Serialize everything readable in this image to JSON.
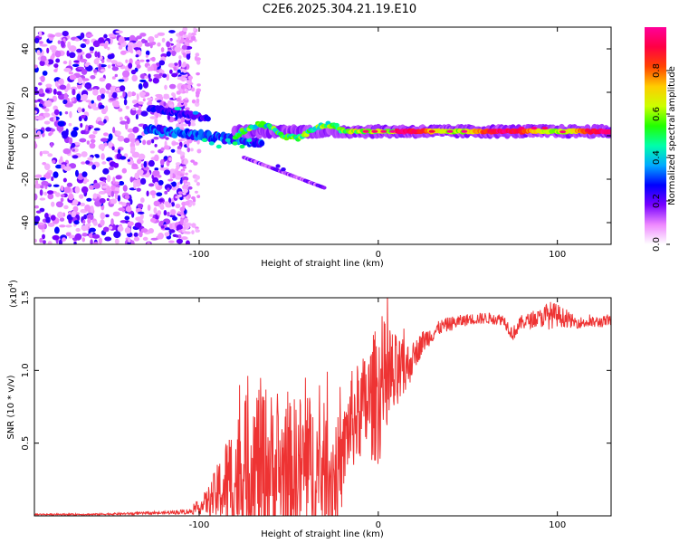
{
  "title": "C2E6.2025.304.21.19.E10",
  "chart_data": [
    {
      "type": "heatmap",
      "xlabel": "Height of straight line (km)",
      "ylabel": "Frequency (Hz)",
      "xlim": [
        -192,
        130
      ],
      "ylim": [
        -50,
        50
      ],
      "x_ticks": [
        -100,
        0,
        100
      ],
      "x_tick_labels": [
        "-100",
        "0",
        "100"
      ],
      "y_ticks": [
        -40,
        -20,
        0,
        20,
        40
      ],
      "y_tick_labels": [
        "-40",
        "-20",
        "0",
        "20",
        "40"
      ],
      "colorbar": {
        "label": "Normalized spectral amplitude",
        "range": [
          0,
          1
        ],
        "ticks": [
          0.0,
          0.2,
          0.4,
          0.6,
          0.8
        ],
        "tick_labels": [
          "0.0",
          "0.2",
          "0.4",
          "0.6",
          "0.8"
        ],
        "colors": [
          "#ffffff",
          "#ee88ff",
          "#7700ff",
          "#0000ff",
          "#00aaff",
          "#00ffaa",
          "#22ff00",
          "#ccff00",
          "#ffcc00",
          "#ff4400",
          "#ff0044",
          "#ff0099"
        ]
      },
      "features": [
        {
          "name": "noise region",
          "x_range": [
            -192,
            -105
          ],
          "y_range": [
            -50,
            48
          ],
          "amplitude": 0.2
        },
        {
          "name": "main signal band",
          "x_range": [
            -80,
            130
          ],
          "frequency": 2,
          "amplitude_range": [
            0.3,
            1.0
          ]
        },
        {
          "name": "upper fork",
          "x_range": [
            -128,
            -95
          ],
          "frequency_range": [
            13,
            8
          ]
        },
        {
          "name": "lower fork",
          "x_range": [
            -120,
            -65
          ],
          "frequency_range": [
            2,
            -5
          ]
        },
        {
          "name": "descending tail",
          "x_range": [
            -75,
            -30
          ],
          "frequency_range": [
            -10,
            -24
          ]
        }
      ]
    },
    {
      "type": "line",
      "xlabel": "Height of straight line (km)",
      "ylabel": "SNR (10 * v/v)",
      "y_scale_label": "(x10",
      "y_scale_exponent": "4",
      "xlim": [
        -192,
        130
      ],
      "ylim": [
        0,
        1.5
      ],
      "x_ticks": [
        -100,
        0,
        100
      ],
      "x_tick_labels": [
        "-100",
        "0",
        "100"
      ],
      "y_ticks": [
        0.5,
        1.0,
        1.5
      ],
      "y_tick_labels": [
        "0.5",
        "1.0",
        "1.5"
      ],
      "line_color": "#ee3333",
      "series": [
        {
          "name": "SNR",
          "x": [
            -192,
            -180,
            -160,
            -140,
            -120,
            -105,
            -100,
            -95,
            -90,
            -85,
            -80,
            -75,
            -70,
            -65,
            -60,
            -55,
            -50,
            -45,
            -40,
            -35,
            -30,
            -25,
            -20,
            -18,
            -15,
            -10,
            -5,
            0,
            5,
            10,
            15,
            20,
            25,
            30,
            35,
            40,
            50,
            60,
            70,
            75,
            80,
            90,
            95,
            100,
            110,
            120,
            130
          ],
          "y": [
            0.01,
            0.01,
            0.01,
            0.015,
            0.02,
            0.03,
            0.06,
            0.1,
            0.15,
            0.2,
            0.25,
            0.3,
            0.35,
            0.35,
            0.32,
            0.3,
            0.28,
            0.3,
            0.32,
            0.3,
            0.28,
            0.28,
            0.35,
            0.55,
            0.65,
            0.72,
            0.78,
            0.85,
            0.9,
            0.95,
            1.0,
            1.1,
            1.2,
            1.25,
            1.3,
            1.32,
            1.35,
            1.36,
            1.35,
            1.25,
            1.33,
            1.36,
            1.38,
            1.38,
            1.33,
            1.33,
            1.34
          ],
          "spread": [
            0.005,
            0.005,
            0.005,
            0.008,
            0.01,
            0.02,
            0.05,
            0.1,
            0.2,
            0.35,
            0.45,
            0.5,
            0.6,
            0.6,
            0.55,
            0.5,
            0.5,
            0.55,
            0.55,
            0.5,
            0.5,
            0.45,
            0.3,
            0.3,
            0.35,
            0.35,
            0.4,
            0.5,
            0.45,
            0.3,
            0.2,
            0.1,
            0.08,
            0.06,
            0.05,
            0.05,
            0.04,
            0.04,
            0.04,
            0.05,
            0.05,
            0.06,
            0.1,
            0.08,
            0.04,
            0.04,
            0.04
          ]
        }
      ]
    }
  ]
}
